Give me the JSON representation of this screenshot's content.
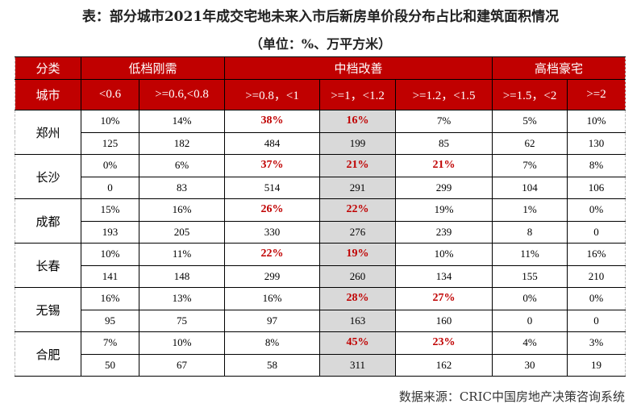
{
  "title": "表：部分城市2021年成交宅地未来入市后新房单价段分布占比和建筑面积情况",
  "subtitle": "（单位：%、万平方米）",
  "header": {
    "category_label": "分类",
    "groups": [
      {
        "label": "低档刚需",
        "span": 2
      },
      {
        "label": "中档改善",
        "span": 3
      },
      {
        "label": "高档豪宅",
        "span": 2
      }
    ],
    "city_label": "城市",
    "ranges": [
      "<0.6",
      ">=0.6,<0.8",
      ">=0.8，<1",
      ">=1，<1.2",
      ">=1.2，<1.5",
      ">=1.5，<2",
      ">=2"
    ]
  },
  "rows": [
    {
      "city": "郑州",
      "pct": [
        "10%",
        "14%",
        "38%",
        "16%",
        "7%",
        "5%",
        "10%"
      ],
      "area": [
        "125",
        "182",
        "484",
        "199",
        "85",
        "62",
        "130"
      ],
      "highlight": [
        false,
        false,
        true,
        true,
        false,
        false,
        false
      ]
    },
    {
      "city": "长沙",
      "pct": [
        "0%",
        "6%",
        "37%",
        "21%",
        "21%",
        "7%",
        "8%"
      ],
      "area": [
        "0",
        "83",
        "514",
        "291",
        "299",
        "104",
        "106"
      ],
      "highlight": [
        false,
        false,
        true,
        true,
        true,
        false,
        false
      ]
    },
    {
      "city": "成都",
      "pct": [
        "15%",
        "16%",
        "26%",
        "22%",
        "19%",
        "1%",
        "0%"
      ],
      "area": [
        "193",
        "205",
        "330",
        "276",
        "239",
        "8",
        "0"
      ],
      "highlight": [
        false,
        false,
        true,
        true,
        false,
        false,
        false
      ]
    },
    {
      "city": "长春",
      "pct": [
        "10%",
        "11%",
        "22%",
        "19%",
        "10%",
        "11%",
        "16%"
      ],
      "area": [
        "141",
        "148",
        "299",
        "260",
        "134",
        "155",
        "210"
      ],
      "highlight": [
        false,
        false,
        true,
        true,
        false,
        false,
        false
      ]
    },
    {
      "city": "无锡",
      "pct": [
        "16%",
        "13%",
        "16%",
        "28%",
        "27%",
        "0%",
        "0%"
      ],
      "area": [
        "95",
        "75",
        "97",
        "163",
        "160",
        "0",
        "0"
      ],
      "highlight": [
        false,
        false,
        false,
        true,
        true,
        false,
        false
      ]
    },
    {
      "city": "合肥",
      "pct": [
        "7%",
        "10%",
        "8%",
        "45%",
        "23%",
        "4%",
        "3%"
      ],
      "area": [
        "50",
        "67",
        "58",
        "311",
        "162",
        "30",
        "19"
      ],
      "highlight": [
        false,
        false,
        false,
        true,
        true,
        false,
        false
      ]
    }
  ],
  "shaded_column_index": 3,
  "source": "数据来源：CRIC中国房地产决策咨询系统",
  "colors": {
    "header_bg": "#c00000",
    "highlight_text": "#c00000",
    "shaded_bg": "#d9d9d9"
  }
}
